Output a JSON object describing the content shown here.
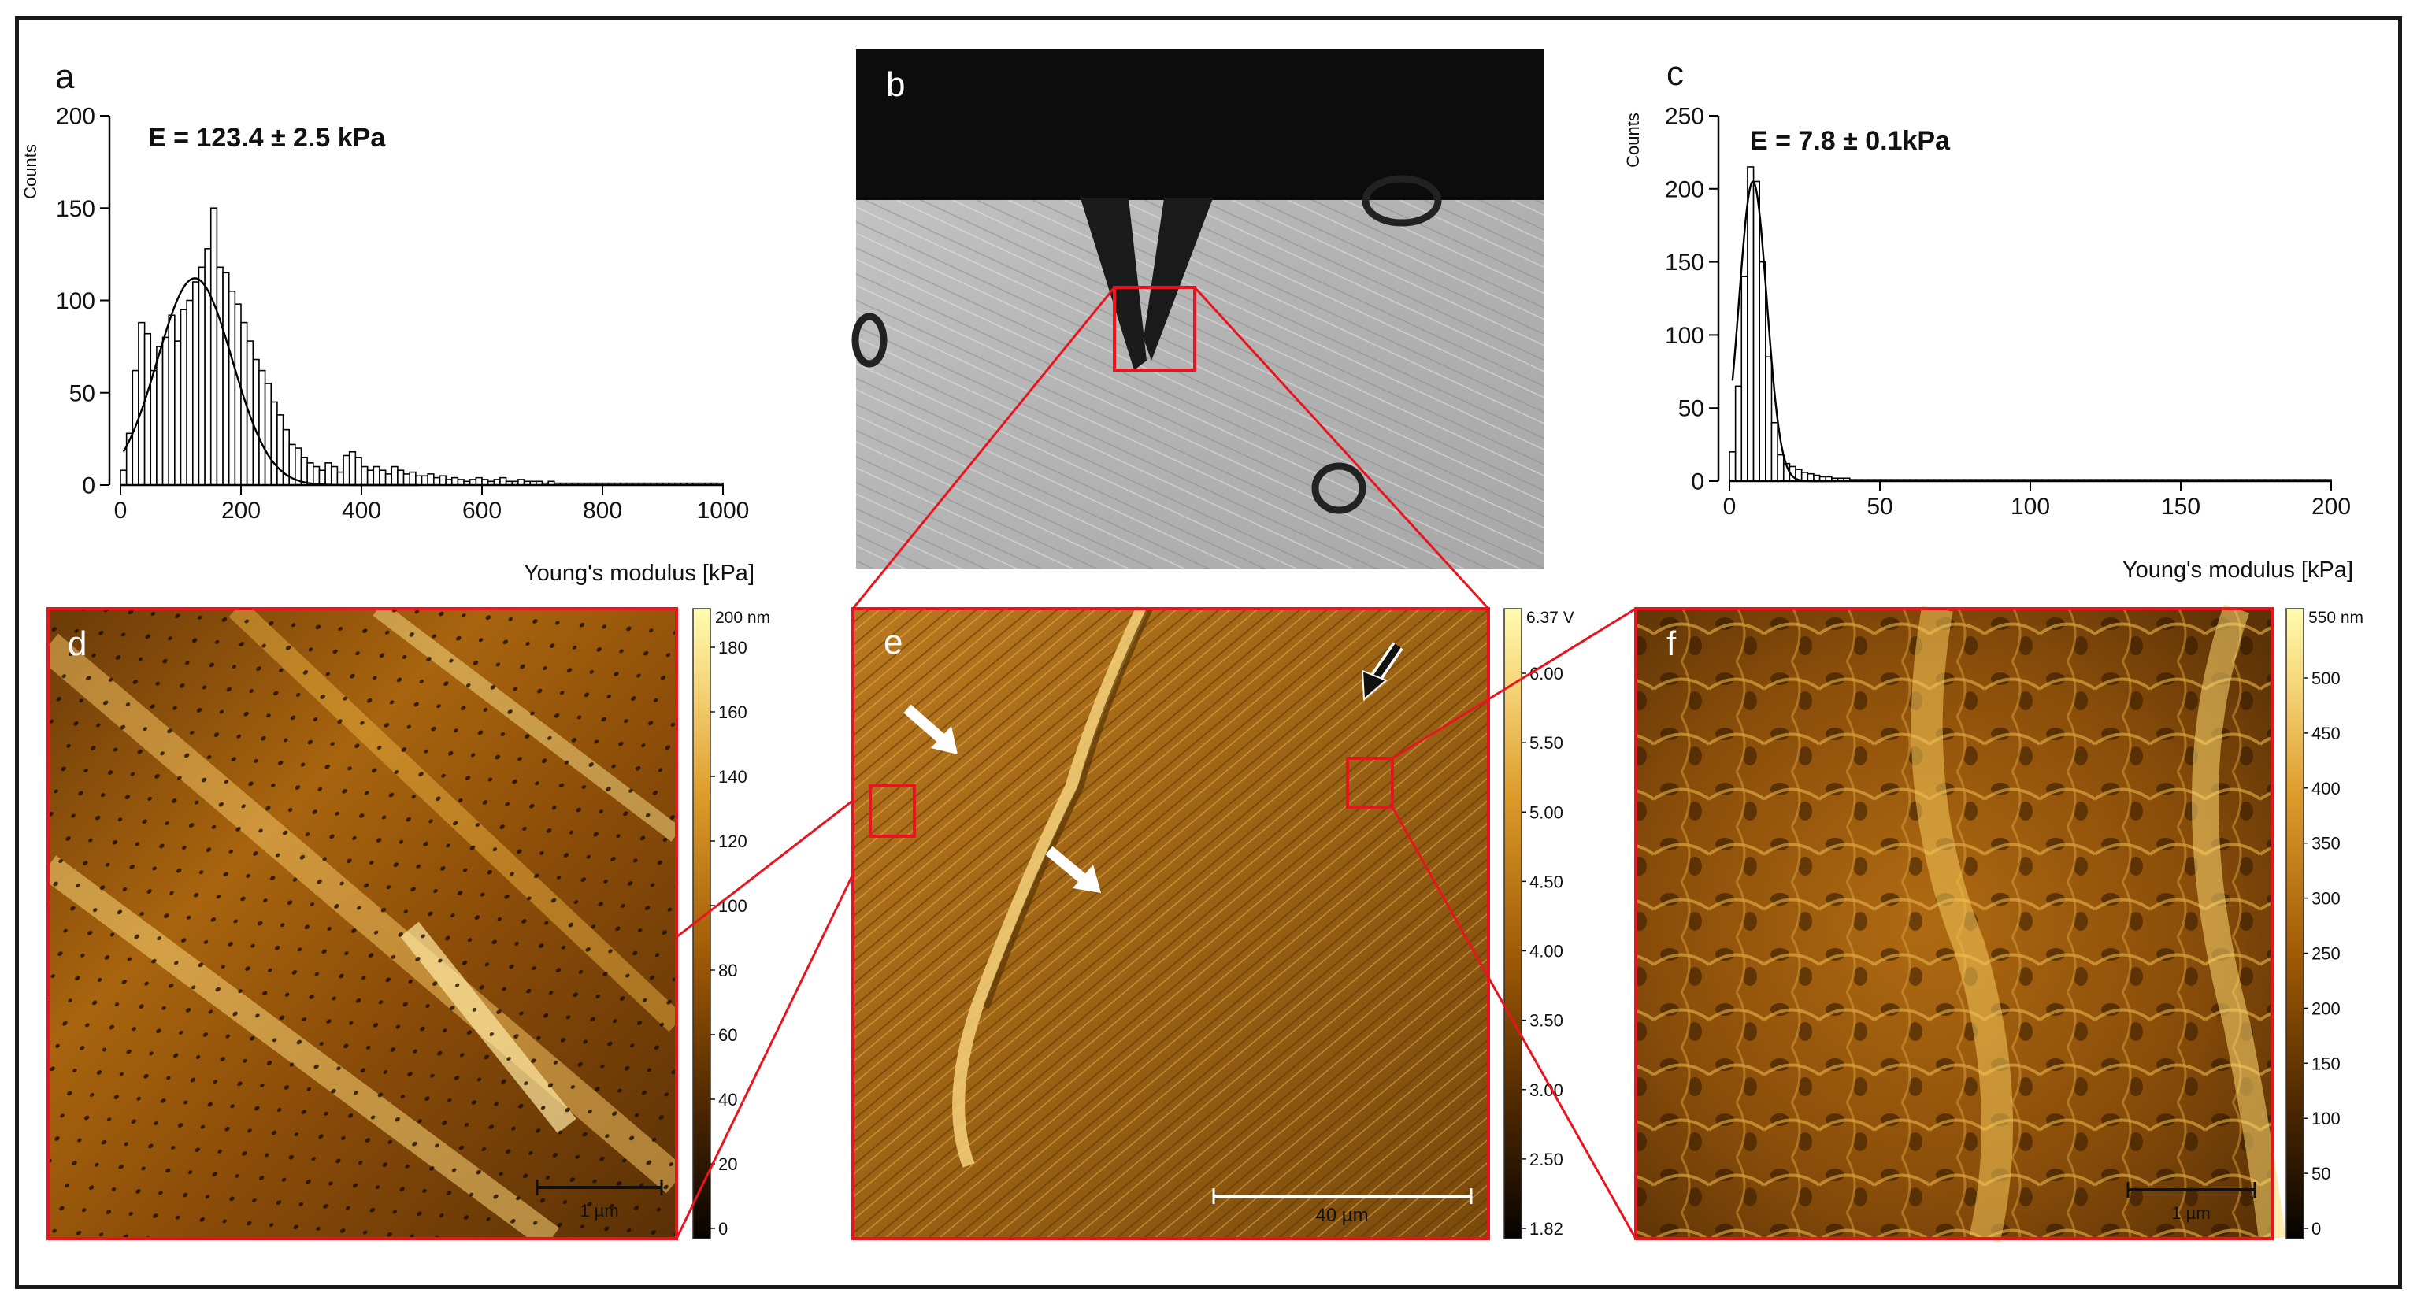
{
  "panel_letters": {
    "a": "a",
    "b": "b",
    "c": "c",
    "d": "d",
    "e": "e",
    "f": "f"
  },
  "chart_data": [
    {
      "panel": "a",
      "type": "bar",
      "annotation": "E = 123.4 ± 2.5 kPa",
      "ylabel": "Counts",
      "xlabel": "Young's modulus [kPa]",
      "xlim": [
        0,
        1000
      ],
      "ylim": [
        0,
        200
      ],
      "xticks": [
        0,
        200,
        400,
        600,
        800,
        1000
      ],
      "yticks": [
        0,
        50,
        100,
        150,
        200
      ],
      "bin_width": 10,
      "bin_start": 0,
      "values": [
        8,
        28,
        62,
        88,
        82,
        62,
        75,
        80,
        92,
        78,
        95,
        100,
        110,
        118,
        128,
        150,
        118,
        115,
        105,
        98,
        88,
        78,
        68,
        62,
        55,
        45,
        38,
        30,
        22,
        20,
        15,
        12,
        10,
        8,
        12,
        10,
        7,
        16,
        18,
        15,
        10,
        8,
        10,
        8,
        6,
        10,
        8,
        6,
        7,
        5,
        5,
        6,
        4,
        5,
        3,
        4,
        3,
        2,
        3,
        4,
        3,
        2,
        3,
        4,
        2,
        2,
        3,
        2,
        2,
        2,
        1,
        2,
        1,
        1,
        1,
        1,
        1,
        1,
        1,
        1,
        1,
        1,
        1,
        1,
        1,
        1,
        1,
        1,
        1,
        1,
        1,
        1,
        1,
        1,
        1,
        1,
        1,
        1,
        1,
        1
      ],
      "fit": {
        "type": "gaussian",
        "center": 123.4,
        "amplitude": 112,
        "sigma": 62
      }
    },
    {
      "panel": "c",
      "type": "bar",
      "annotation": "E = 7.8 ± 0.1kPa",
      "ylabel": "Counts",
      "xlabel": "Young's modulus [kPa]",
      "xlim": [
        0,
        200
      ],
      "ylim": [
        0,
        250
      ],
      "xticks": [
        0,
        50,
        100,
        150,
        200
      ],
      "yticks": [
        0,
        50,
        100,
        150,
        200,
        250
      ],
      "bin_width": 2,
      "bin_start": 0,
      "values": [
        20,
        65,
        140,
        215,
        205,
        150,
        85,
        40,
        18,
        12,
        10,
        8,
        6,
        5,
        4,
        3,
        3,
        2,
        2,
        2,
        1,
        1,
        1,
        1,
        1,
        1,
        1,
        1,
        1,
        1,
        1,
        1,
        1,
        1,
        1,
        1,
        1,
        1,
        1,
        1,
        1,
        1,
        1,
        1,
        1,
        1,
        1,
        1,
        1,
        1,
        1,
        1,
        1,
        1,
        1,
        1,
        1,
        1,
        1,
        1,
        1,
        1,
        1,
        1,
        1,
        1,
        1,
        1,
        1,
        1,
        1,
        1,
        1,
        1,
        1,
        1,
        1,
        1,
        1,
        1,
        1,
        1,
        1,
        1,
        1,
        1,
        1,
        1,
        1,
        1,
        1,
        1,
        1,
        1,
        1,
        1,
        1,
        1,
        1,
        1
      ],
      "fit": {
        "type": "gaussian",
        "center": 7.8,
        "amplitude": 205,
        "sigma": 4.6
      }
    }
  ],
  "colorbars": {
    "d": {
      "unit_label": "200 nm",
      "ticks": [
        "180",
        "160",
        "140",
        "120",
        "100",
        "80",
        "60",
        "40",
        "20",
        "0"
      ]
    },
    "e": {
      "unit_label": "6.37 V",
      "ticks": [
        "6.00",
        "5.50",
        "5.00",
        "4.50",
        "4.00",
        "3.50",
        "3.00",
        "2.50",
        "1.82"
      ]
    },
    "f": {
      "unit_label": "550 nm",
      "ticks": [
        "500",
        "450",
        "400",
        "350",
        "300",
        "250",
        "200",
        "150",
        "100",
        "50",
        "0"
      ]
    }
  },
  "scalebars": {
    "d": "1 µm",
    "e": "40 µm",
    "f": "1 µm"
  },
  "colors": {
    "highlight": "#e8141e",
    "bar_fill": "#ffffff",
    "axis": "#000000"
  }
}
